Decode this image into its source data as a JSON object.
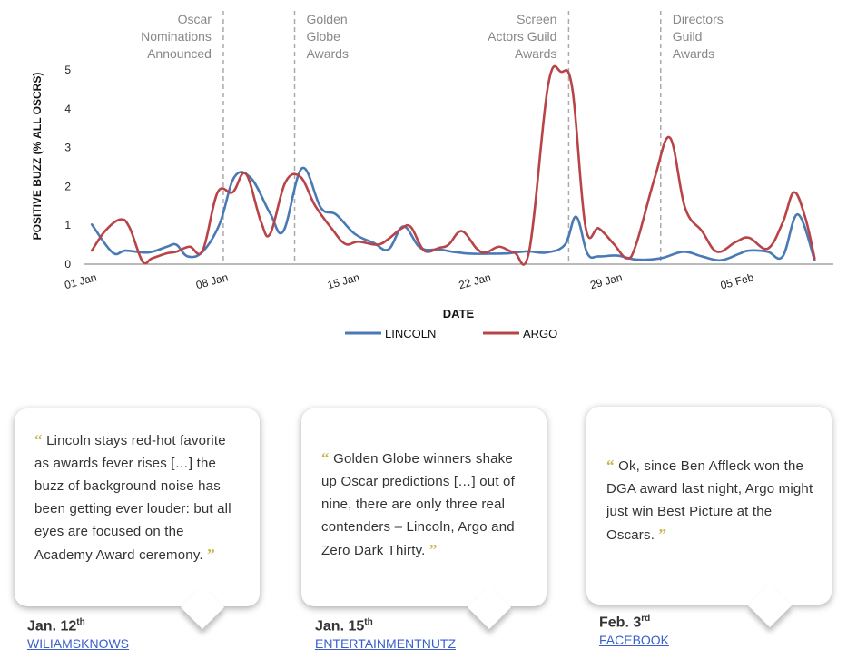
{
  "chart_data": {
    "type": "line",
    "xlabel": "DATE",
    "ylabel": "POSITIVE BUZZ (% ALL OSCRS)",
    "ylim": [
      0,
      5
    ],
    "yticks": [
      "0",
      "1",
      "2",
      "3",
      "4",
      "5"
    ],
    "x_ticks": [
      {
        "day": 1,
        "label": "01 Jan"
      },
      {
        "day": 8,
        "label": "08 Jan"
      },
      {
        "day": 15,
        "label": "15 Jan"
      },
      {
        "day": 22,
        "label": "22 Jan"
      },
      {
        "day": 29,
        "label": "29 Jan"
      },
      {
        "day": 36,
        "label": "05 Feb"
      }
    ],
    "x_start": "01 Jan",
    "grid": false,
    "legend_position": "bottom",
    "series": [
      {
        "name": "LINCOLN",
        "color": "#4a7ab5",
        "points": [
          [
            1.0,
            1.02
          ],
          [
            2.1,
            0.3
          ],
          [
            2.8,
            0.35
          ],
          [
            4.0,
            0.3
          ],
          [
            5.0,
            0.45
          ],
          [
            5.5,
            0.5
          ],
          [
            6.1,
            0.2
          ],
          [
            6.9,
            0.32
          ],
          [
            7.8,
            1.03
          ],
          [
            8.6,
            2.25
          ],
          [
            9.5,
            2.2
          ],
          [
            10.5,
            1.3
          ],
          [
            11.2,
            0.85
          ],
          [
            12.2,
            2.47
          ],
          [
            13.2,
            1.45
          ],
          [
            14.0,
            1.28
          ],
          [
            15.0,
            0.78
          ],
          [
            16.0,
            0.55
          ],
          [
            16.8,
            0.38
          ],
          [
            17.6,
            0.97
          ],
          [
            18.5,
            0.42
          ],
          [
            19.5,
            0.38
          ],
          [
            20.2,
            0.32
          ],
          [
            21.2,
            0.27
          ],
          [
            22.2,
            0.27
          ],
          [
            23.2,
            0.28
          ],
          [
            24.2,
            0.33
          ],
          [
            25.2,
            0.3
          ],
          [
            26.2,
            0.5
          ],
          [
            26.8,
            1.22
          ],
          [
            27.4,
            0.27
          ],
          [
            28.0,
            0.2
          ],
          [
            29.0,
            0.22
          ],
          [
            30.0,
            0.12
          ],
          [
            31.3,
            0.15
          ],
          [
            32.5,
            0.32
          ],
          [
            33.5,
            0.2
          ],
          [
            34.5,
            0.1
          ],
          [
            35.5,
            0.27
          ],
          [
            36.0,
            0.35
          ],
          [
            37.0,
            0.32
          ],
          [
            37.8,
            0.2
          ],
          [
            38.6,
            1.28
          ],
          [
            39.5,
            0.1
          ]
        ]
      },
      {
        "name": "ARGO",
        "color": "#b84448",
        "points": [
          [
            1.0,
            0.35
          ],
          [
            1.7,
            0.85
          ],
          [
            2.5,
            1.15
          ],
          [
            3.0,
            0.95
          ],
          [
            3.7,
            0.07
          ],
          [
            4.2,
            0.15
          ],
          [
            5.0,
            0.28
          ],
          [
            5.5,
            0.32
          ],
          [
            6.2,
            0.45
          ],
          [
            6.9,
            0.35
          ],
          [
            7.7,
            1.85
          ],
          [
            8.5,
            1.85
          ],
          [
            9.2,
            2.33
          ],
          [
            10.0,
            1.1
          ],
          [
            10.5,
            0.78
          ],
          [
            11.3,
            2.1
          ],
          [
            12.1,
            2.25
          ],
          [
            12.9,
            1.5
          ],
          [
            13.8,
            0.9
          ],
          [
            14.5,
            0.52
          ],
          [
            15.2,
            0.58
          ],
          [
            16.2,
            0.5
          ],
          [
            16.8,
            0.65
          ],
          [
            17.5,
            0.92
          ],
          [
            18.0,
            0.95
          ],
          [
            18.7,
            0.35
          ],
          [
            19.5,
            0.42
          ],
          [
            20.0,
            0.5
          ],
          [
            20.7,
            0.85
          ],
          [
            21.5,
            0.4
          ],
          [
            22.0,
            0.3
          ],
          [
            22.7,
            0.45
          ],
          [
            23.5,
            0.3
          ],
          [
            24.3,
            0.35
          ],
          [
            25.3,
            4.6
          ],
          [
            26.0,
            4.95
          ],
          [
            26.6,
            4.5
          ],
          [
            27.3,
            0.95
          ],
          [
            28.0,
            0.92
          ],
          [
            28.8,
            0.52
          ],
          [
            29.5,
            0.15
          ],
          [
            30.0,
            0.52
          ],
          [
            31.0,
            2.25
          ],
          [
            31.8,
            3.25
          ],
          [
            32.6,
            1.45
          ],
          [
            33.5,
            0.85
          ],
          [
            34.3,
            0.32
          ],
          [
            35.3,
            0.57
          ],
          [
            36.0,
            0.68
          ],
          [
            37.0,
            0.4
          ],
          [
            37.8,
            1.07
          ],
          [
            38.4,
            1.85
          ],
          [
            39.0,
            1.2
          ],
          [
            39.5,
            0.15
          ]
        ]
      }
    ],
    "annotations": [
      {
        "day": 8.0,
        "lines": [
          "Oscar",
          "Nominations",
          "Announced"
        ],
        "align": "right"
      },
      {
        "day": 11.8,
        "lines": [
          "Golden",
          "Globe",
          "Awards"
        ],
        "align": "left"
      },
      {
        "day": 26.4,
        "lines": [
          "Screen",
          "Actors Guild",
          "Awards"
        ],
        "align": "right"
      },
      {
        "day": 31.3,
        "lines": [
          "Directors",
          "Guild",
          "Awards"
        ],
        "align": "left"
      }
    ]
  },
  "quotes": [
    {
      "text": "Lincoln stays red-hot favorite as awards fever rises […] the buzz of background noise has been getting ever louder: but all eyes are focused on the Academy Award ceremony.",
      "date": "Jan. 12",
      "date_sup": "th",
      "source": "WILIAMSKNOWS"
    },
    {
      "text": "Golden Globe winners shake up Oscar predictions […] out of nine, there are only three real contenders – Lincoln, Argo and Zero Dark Thirty.",
      "date": "Jan. 15",
      "date_sup": "th",
      "source": "ENTERTAINMENTNUTZ"
    },
    {
      "text": "Ok, since Ben Affleck won the DGA award last night, Argo might just win Best Picture at the Oscars.",
      "date": "Feb. 3",
      "date_sup": "rd",
      "source": "FACEBOOK"
    }
  ],
  "quote_open": "“",
  "quote_close": "”"
}
